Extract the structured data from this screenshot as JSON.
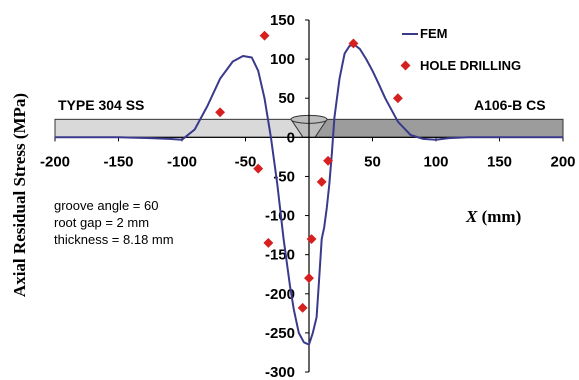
{
  "chart_data": {
    "type": "scatter",
    "xlabel_prefix": "X",
    "xlabel_unit": " (mm)",
    "ylabel": "Axial Residual Stress (MPa)",
    "xlim": [
      -200,
      200
    ],
    "ylim": [
      -300,
      150
    ],
    "x_ticks": [
      "-200",
      "-150",
      "-100",
      "-50",
      "0",
      "50",
      "100",
      "150",
      "200"
    ],
    "y_ticks": [
      "150",
      "100",
      "50",
      "0",
      "-50",
      "-100",
      "-150",
      "-200",
      "-250",
      "-300"
    ],
    "y_tick_values": [
      150,
      100,
      50,
      0,
      -50,
      -100,
      -150,
      -200,
      -250,
      -300
    ],
    "x_tick_values": [
      -200,
      -150,
      -100,
      -50,
      0,
      50,
      100,
      150,
      200
    ],
    "series": [
      {
        "name": "FEM",
        "kind": "line",
        "color": "#3a3a8c",
        "x": [
          -200,
          -150,
          -125,
          -110,
          -100,
          -90,
          -80,
          -70,
          -60,
          -52,
          -45,
          -40,
          -35,
          -30,
          -25,
          -20,
          -15,
          -12,
          -8,
          -4,
          0,
          3,
          6,
          8,
          10,
          12,
          14,
          16,
          18,
          20,
          24,
          28,
          32,
          36,
          40,
          45,
          50,
          55,
          60,
          70,
          80,
          90,
          100,
          110,
          125,
          150,
          200
        ],
        "y": [
          0,
          0,
          -1,
          -2,
          -3,
          10,
          40,
          75,
          97,
          104,
          102,
          85,
          50,
          0,
          -60,
          -130,
          -190,
          -220,
          -250,
          -262,
          -265,
          -250,
          -230,
          -180,
          -130,
          -115,
          -90,
          -60,
          -20,
          25,
          75,
          107,
          117,
          118,
          113,
          100,
          85,
          68,
          50,
          20,
          3,
          -2,
          -3,
          -1,
          0,
          0,
          0
        ]
      },
      {
        "name": "HOLE DRILLING",
        "kind": "markers",
        "color": "#d62020",
        "x": [
          -70,
          -35,
          -40,
          -32,
          -5,
          0,
          2,
          10,
          15,
          35,
          70
        ],
        "y": [
          32,
          130,
          -40,
          -135,
          -218,
          -180,
          -130,
          -57,
          -30,
          120,
          50
        ]
      }
    ],
    "annotations": {
      "left_material": "TYPE 304 SS",
      "right_material": "A106-B CS",
      "groove_angle": "groove angle = 60",
      "root_gap": "root gap = 2 mm",
      "thickness": "thickness = 8.18 mm"
    }
  }
}
